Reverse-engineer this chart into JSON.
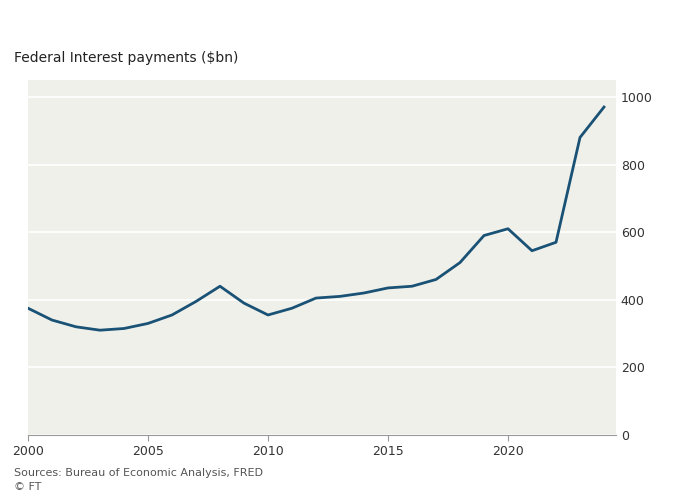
{
  "title": "Federal Interest payments ($bn)",
  "source_text": "Sources: Bureau of Economic Analysis, FRED\n© FT",
  "line_color": "#1a5276",
  "background_color": "#ffffff",
  "plot_bg_color": "#f0f0eb",
  "grid_color": "#ffffff",
  "ylim": [
    0,
    1050
  ],
  "yticks": [
    0,
    200,
    400,
    600,
    800,
    1000
  ],
  "xlim": [
    2000,
    2024.5
  ],
  "xticks": [
    2000,
    2005,
    2010,
    2015,
    2020
  ],
  "years": [
    2000,
    2001,
    2002,
    2003,
    2004,
    2005,
    2006,
    2007,
    2008,
    2009,
    2010,
    2011,
    2012,
    2013,
    2014,
    2015,
    2016,
    2017,
    2018,
    2019,
    2020,
    2021,
    2022,
    2023,
    2024
  ],
  "values": [
    375,
    340,
    320,
    310,
    315,
    330,
    355,
    395,
    440,
    390,
    355,
    375,
    405,
    410,
    420,
    435,
    440,
    460,
    510,
    590,
    610,
    545,
    570,
    880,
    970
  ]
}
